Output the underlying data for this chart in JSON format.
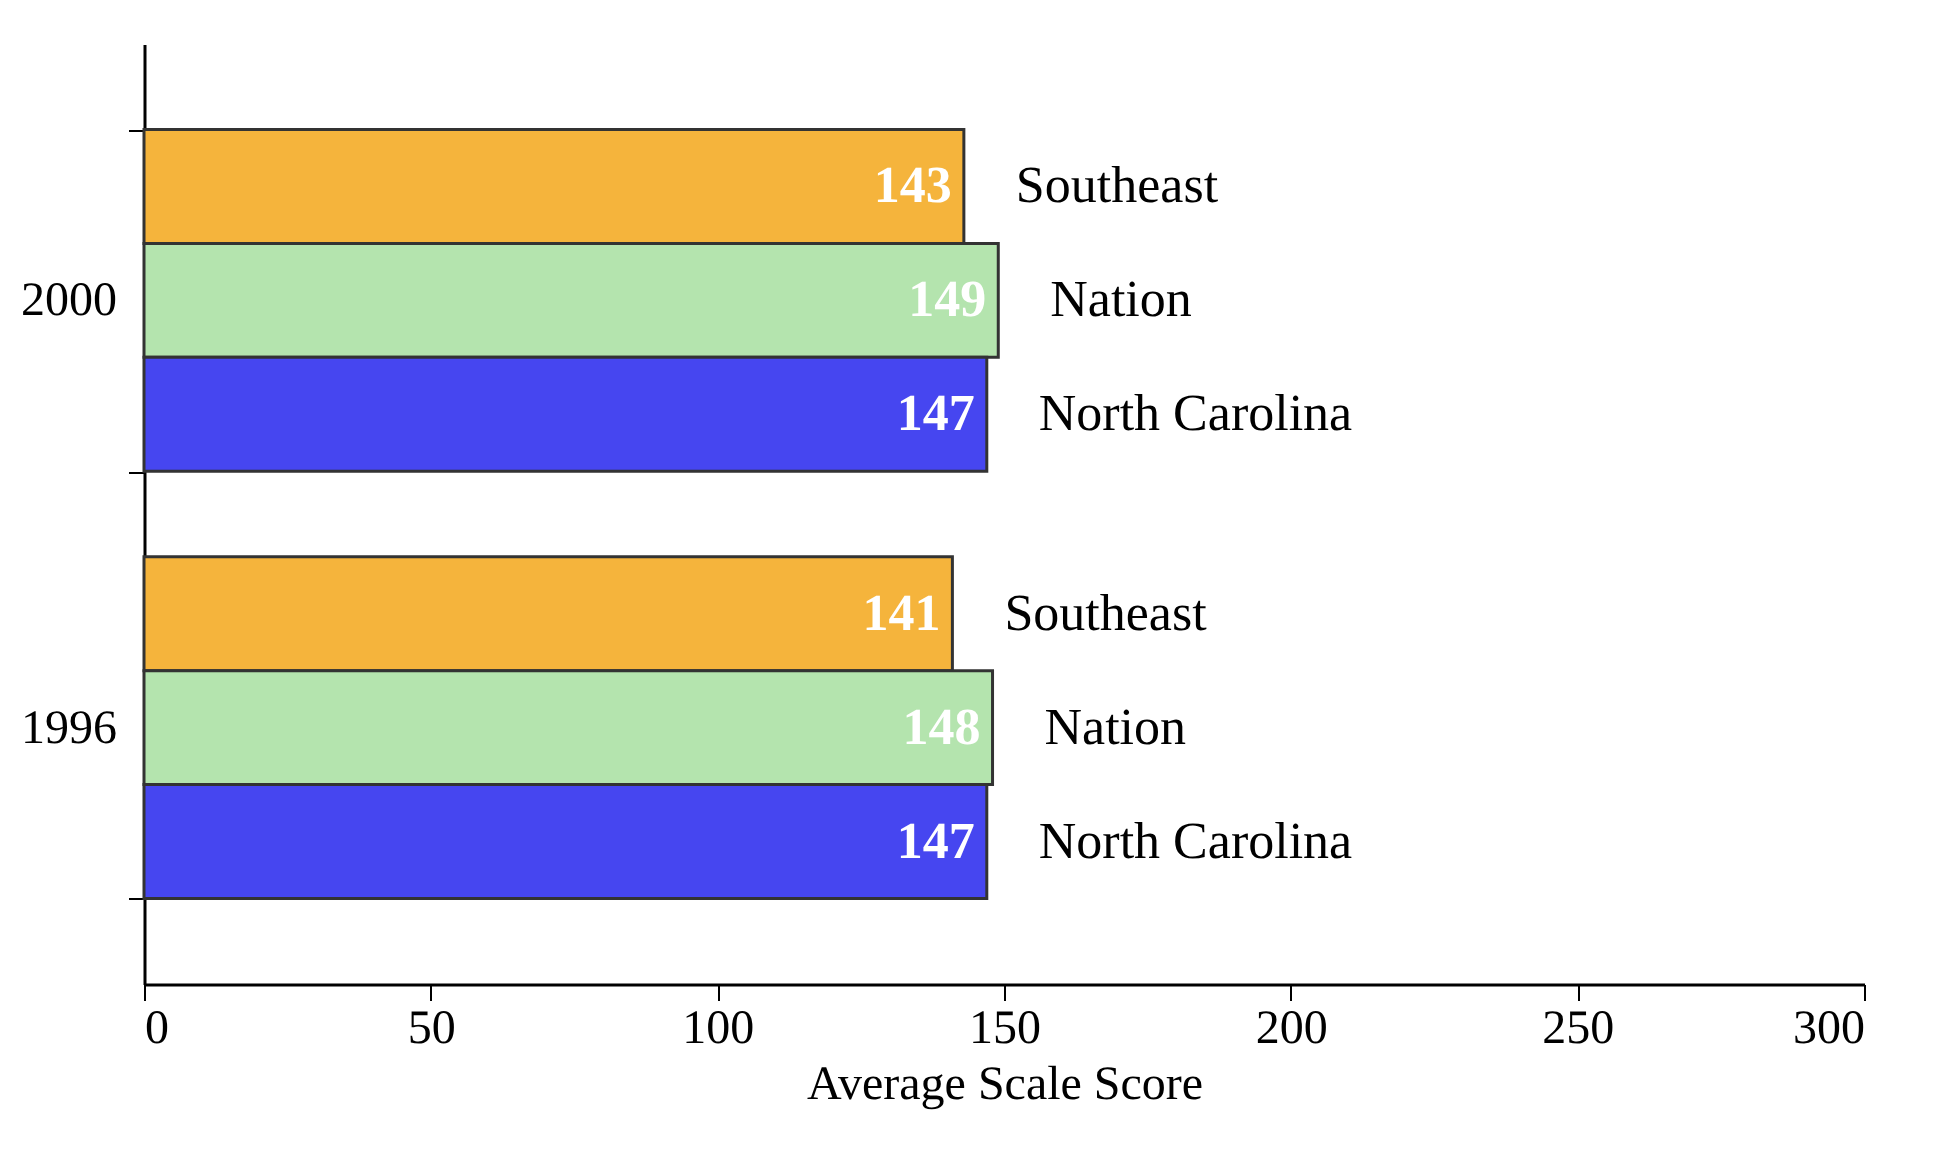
{
  "chart_data": {
    "type": "bar",
    "orientation": "horizontal",
    "categories": [
      "2000",
      "1996"
    ],
    "series": [
      {
        "name": "Southeast",
        "color": "#f5b43c",
        "values": [
          143,
          141
        ]
      },
      {
        "name": "Nation",
        "color": "#b4e4ae",
        "values": [
          149,
          148
        ]
      },
      {
        "name": "North Carolina",
        "color": "#4646f0",
        "values": [
          147,
          147
        ]
      }
    ],
    "xlabel": "Average Scale Score",
    "xlim": [
      0,
      300
    ],
    "xticks": [
      0,
      50,
      100,
      150,
      200,
      250,
      300
    ],
    "data_labels": true,
    "legend": false,
    "grid": false
  }
}
